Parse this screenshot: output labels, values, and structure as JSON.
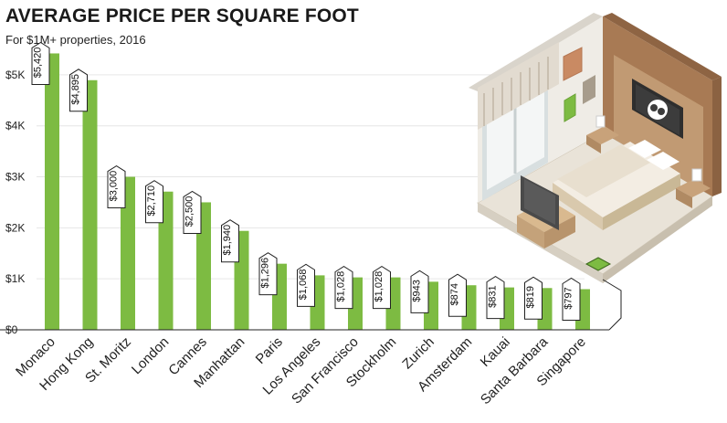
{
  "chart_data": {
    "type": "bar",
    "title": "AVERAGE PRICE PER SQUARE FOOT",
    "subtitle": "For $1M+ properties, 2016",
    "categories": [
      "Monaco",
      "Hong Kong",
      "St. Moritz",
      "London",
      "Cannes",
      "Manhattan",
      "Paris",
      "Los Angeles",
      "San Francisco",
      "Stockholm",
      "Zurich",
      "Amsterdam",
      "Kauai",
      "Santa Barbara",
      "Singapore"
    ],
    "values": [
      5420,
      4895,
      3000,
      2710,
      2500,
      1940,
      1296,
      1068,
      1028,
      1028,
      943,
      874,
      831,
      819,
      797
    ],
    "data_labels": [
      "$5,420",
      "$4,895",
      "$3,000",
      "$2,710",
      "$2,500",
      "$1,940",
      "$1,296",
      "$1,068",
      "$1,028",
      "$1,028",
      "$943",
      "$874",
      "$831",
      "$819",
      "$797"
    ],
    "y_ticks": [
      0,
      1000,
      2000,
      3000,
      4000,
      5000
    ],
    "y_tick_labels": [
      "$0",
      "$1K",
      "$2K",
      "$3K",
      "$4K",
      "$5K"
    ],
    "ylim": [
      0,
      5500
    ],
    "grid": true,
    "xlabel": "",
    "ylabel": ""
  },
  "colors": {
    "bar": "#7dbb42",
    "bar_shadow": "#5a9a2c",
    "grid": "#e6e6e6",
    "axis": "#222222"
  },
  "illustration": {
    "icon": "isometric-bedroom-illustration"
  }
}
